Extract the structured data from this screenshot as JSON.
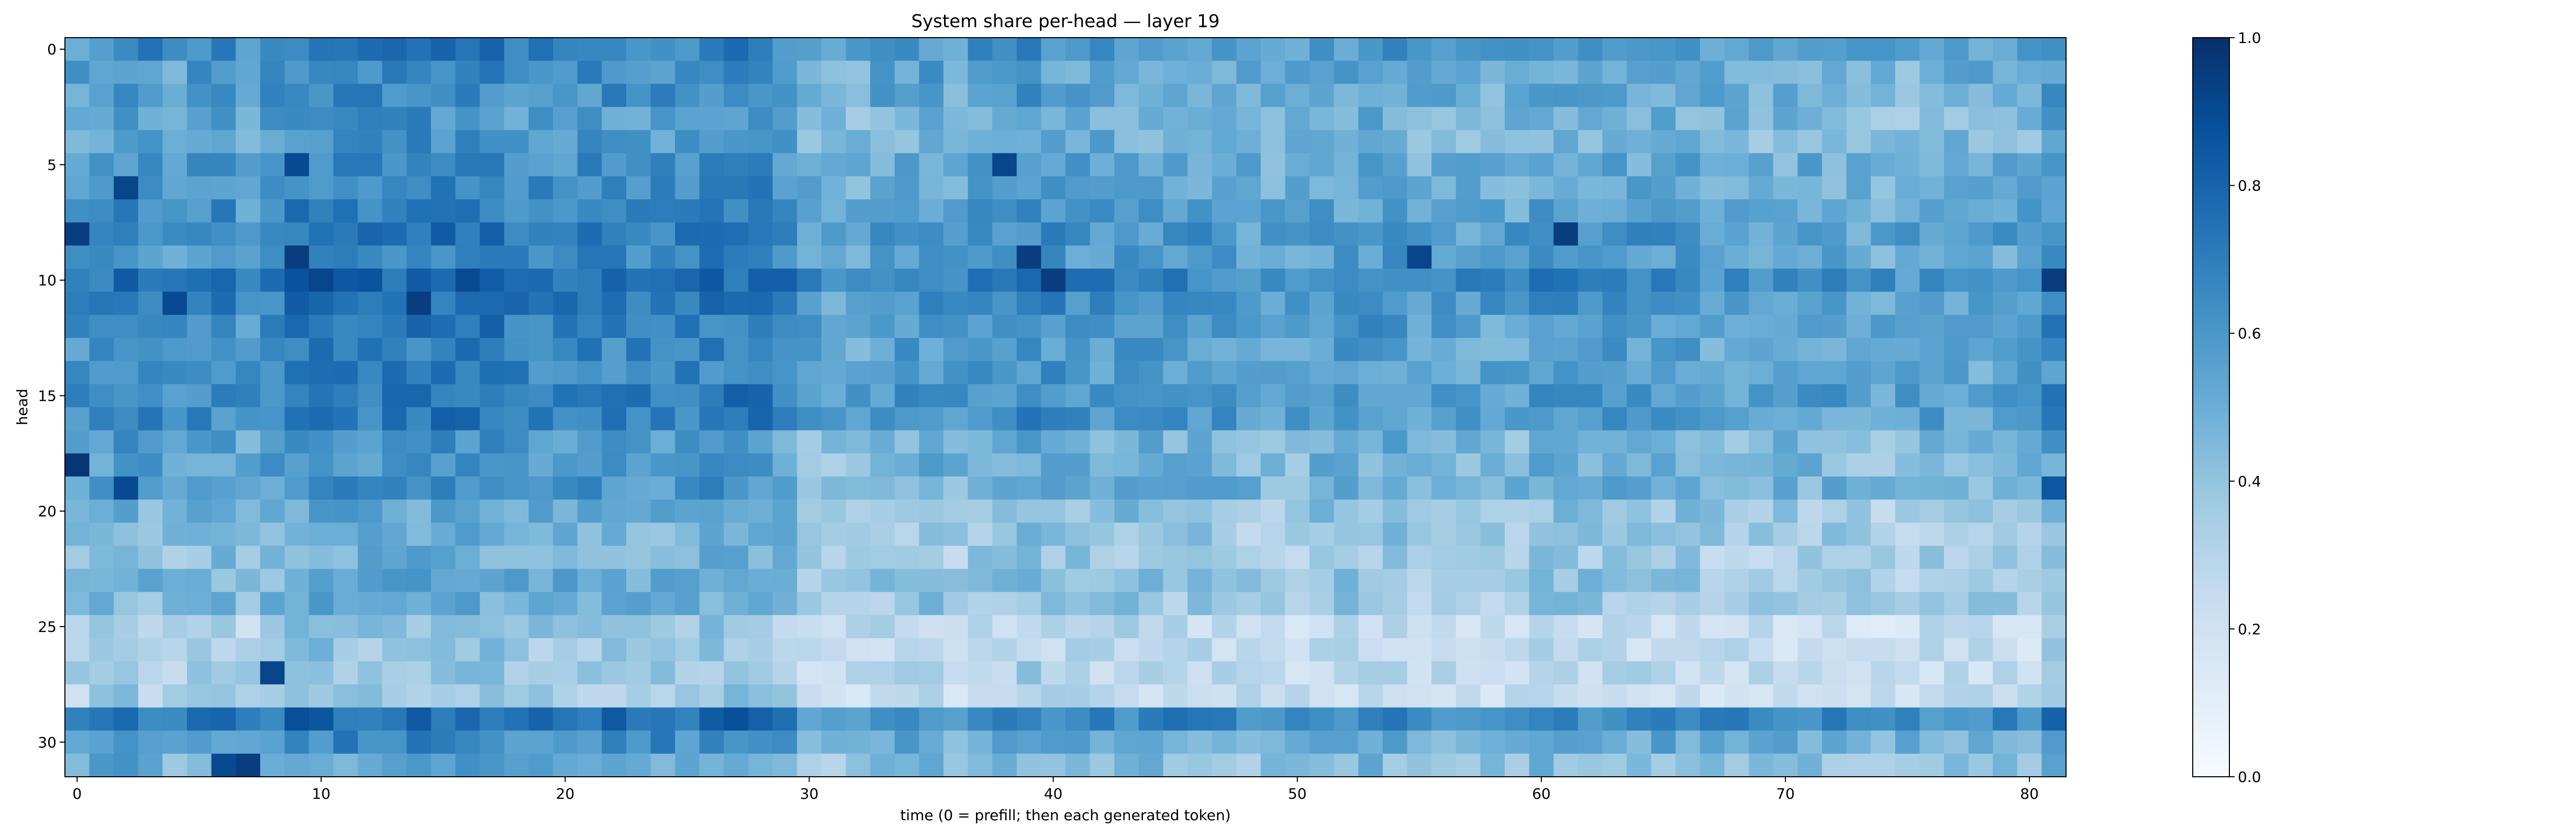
{
  "chart_data": {
    "type": "heatmap",
    "title": "System share per-head — layer 19",
    "xlabel": "time (0 = prefill; then each generated token)",
    "ylabel": "head",
    "x_ticks": [
      0,
      10,
      20,
      30,
      40,
      50,
      60,
      70,
      80
    ],
    "y_ticks": [
      0,
      5,
      10,
      15,
      20,
      25,
      30
    ],
    "x_range": [
      0,
      81
    ],
    "y_range": [
      0,
      31
    ],
    "colormap": "Blues",
    "colorbar": {
      "min": 0.0,
      "max": 1.0,
      "ticks": [
        "0.0",
        "0.2",
        "0.4",
        "0.6",
        "0.8",
        "1.0"
      ]
    },
    "grid": false,
    "n_cols": 82,
    "n_rows": 32,
    "row_profile": [
      0.6,
      0.55,
      0.55,
      0.5,
      0.5,
      0.55,
      0.55,
      0.58,
      0.62,
      0.58,
      0.68,
      0.62,
      0.6,
      0.58,
      0.58,
      0.62,
      0.6,
      0.5,
      0.5,
      0.52,
      0.42,
      0.4,
      0.38,
      0.42,
      0.4,
      0.28,
      0.28,
      0.3,
      0.28,
      0.68,
      0.55,
      0.45
    ],
    "col_profile": [
      0.0,
      0.05,
      0.08,
      0.05,
      0.0,
      0.05,
      0.05,
      0.0,
      0.05,
      0.12,
      0.12,
      0.1,
      0.1,
      0.1,
      0.12,
      0.12,
      0.12,
      0.12,
      0.08,
      0.08,
      0.08,
      0.08,
      0.08,
      0.08,
      0.08,
      0.08,
      0.1,
      0.1,
      0.1,
      0.05,
      -0.05,
      -0.08,
      -0.05,
      -0.02,
      -0.02,
      0.0,
      -0.05,
      0.0,
      0.0,
      0.05,
      0.02,
      0.0,
      0.0,
      0.0,
      -0.02,
      -0.02,
      -0.02,
      -0.02,
      -0.05,
      -0.05,
      -0.05,
      -0.02,
      -0.02,
      0.0,
      0.0,
      -0.05,
      -0.05,
      -0.05,
      -0.05,
      -0.05,
      0.0,
      0.0,
      -0.02,
      -0.02,
      -0.02,
      -0.02,
      -0.02,
      -0.05,
      -0.05,
      -0.05,
      -0.05,
      -0.05,
      -0.05,
      -0.08,
      -0.08,
      -0.08,
      -0.05,
      -0.05,
      -0.05,
      -0.05,
      -0.05,
      0.05
    ],
    "highlights": [
      {
        "t": 0,
        "head": 8,
        "value": 0.95
      },
      {
        "t": 0,
        "head": 18,
        "value": 0.98
      },
      {
        "t": 2,
        "head": 6,
        "value": 0.92
      },
      {
        "t": 2,
        "head": 19,
        "value": 0.9
      },
      {
        "t": 4,
        "head": 11,
        "value": 0.9
      },
      {
        "t": 6,
        "head": 31,
        "value": 0.9
      },
      {
        "t": 7,
        "head": 31,
        "value": 0.95
      },
      {
        "t": 8,
        "head": 27,
        "value": 0.92
      },
      {
        "t": 9,
        "head": 5,
        "value": 0.9
      },
      {
        "t": 9,
        "head": 9,
        "value": 0.95
      },
      {
        "t": 10,
        "head": 10,
        "value": 0.92
      },
      {
        "t": 14,
        "head": 11,
        "value": 0.95
      },
      {
        "t": 38,
        "head": 5,
        "value": 0.92
      },
      {
        "t": 39,
        "head": 9,
        "value": 0.95
      },
      {
        "t": 40,
        "head": 10,
        "value": 0.95
      },
      {
        "t": 55,
        "head": 9,
        "value": 0.92
      },
      {
        "t": 61,
        "head": 8,
        "value": 0.95
      },
      {
        "t": 81,
        "head": 10,
        "value": 0.95
      },
      {
        "t": 81,
        "head": 19,
        "value": 0.85
      }
    ]
  }
}
